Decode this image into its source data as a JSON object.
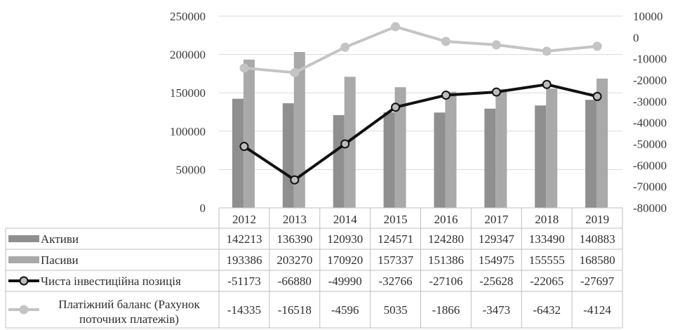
{
  "chart_data": {
    "type": "bar",
    "categories": [
      "2012",
      "2013",
      "2014",
      "2015",
      "2016",
      "2017",
      "2018",
      "2019"
    ],
    "y_left": {
      "min": 0,
      "max": 250000,
      "step": 50000,
      "ticks": [
        "0",
        "50000",
        "100000",
        "150000",
        "200000",
        "250000"
      ]
    },
    "y_right": {
      "min": -80000,
      "max": 10000,
      "step": 10000,
      "ticks": [
        "-80000",
        "-70000",
        "-60000",
        "-50000",
        "-40000",
        "-30000",
        "-20000",
        "-10000",
        "0",
        "10000"
      ]
    },
    "series": [
      {
        "name": "Активи",
        "type": "bar",
        "axis": "left",
        "color": "#8f8f8f",
        "values": [
          142213,
          136390,
          120930,
          124571,
          124280,
          129347,
          133490,
          140883
        ],
        "labels": [
          "142213",
          "136390",
          "120930",
          "124571",
          "124280",
          "129347",
          "133490",
          "140883"
        ]
      },
      {
        "name": "Пасиви",
        "type": "bar",
        "axis": "left",
        "color": "#a9a9a9",
        "values": [
          193386,
          203270,
          170920,
          157337,
          151386,
          154975,
          155555,
          168580
        ],
        "labels": [
          "193386",
          "203270",
          "170920",
          "157337",
          "151386",
          "154975",
          "155555",
          "168580"
        ]
      },
      {
        "name": "Чиста інвестиційна позиція",
        "type": "line",
        "axis": "right",
        "color": "#111111",
        "values": [
          -51173,
          -66880,
          -49990,
          -32766,
          -27106,
          -25628,
          -22065,
          -27697
        ],
        "labels": [
          "-51173",
          "-66880",
          "-49990",
          "-32766",
          "-27106",
          "-25628",
          "-22065",
          "-27697"
        ]
      },
      {
        "name": "Платіжний баланс (Рахунок поточних платежів)",
        "type": "line",
        "axis": "right",
        "color": "#c4c4c4",
        "name_lines": [
          "Платіжний баланс (Рахунок",
          "поточних платежів)"
        ],
        "values": [
          -14335,
          -16518,
          -4596,
          5035,
          -1866,
          -3473,
          -6432,
          -4124
        ],
        "labels": [
          "-14335",
          "-16518",
          "-4596",
          "5035",
          "-1866",
          "-3473",
          "-6432",
          "-4124"
        ]
      }
    ],
    "grid": true,
    "legend": "data-table"
  }
}
